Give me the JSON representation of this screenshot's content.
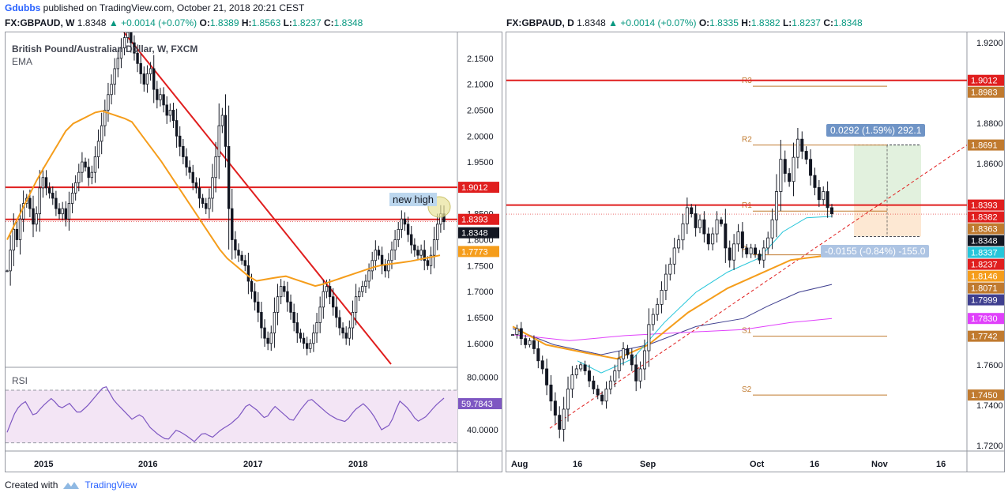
{
  "header": {
    "author": "Gdubbs",
    "text": "published on TradingView.com, October 21, 2018 20:21 CEST"
  },
  "left": {
    "quote": {
      "symbol": "FX:GBPAUD, W",
      "last": "1.8348",
      "change": "+0.0014 (+0.07%)",
      "o_lbl": "O:",
      "o": "1.8389",
      "h_lbl": "H:",
      "h": "1.8563",
      "l_lbl": "L:",
      "l": "1.8237",
      "c_lbl": "C:",
      "c": "1.8348"
    },
    "title": "British Pound/Australian Dollar, W, FXCM",
    "indicator": "EMA",
    "annotation": "new high",
    "rsi_label": "RSI"
  },
  "right": {
    "quote": {
      "symbol": "FX:GBPAUD, D",
      "last": "1.8348",
      "change": "+0.0014 (+0.07%)",
      "o_lbl": "O:",
      "o": "1.8335",
      "h_lbl": "H:",
      "h": "1.8382",
      "l_lbl": "L:",
      "l": "1.8237",
      "c_lbl": "C:",
      "c": "1.8348"
    },
    "measure_up": "0.0292 (1.59%) 292.1",
    "measure_down": "-0.0155 (-0.84%) -155.0"
  },
  "footer": {
    "created": "Created with",
    "brand": "TradingView"
  },
  "colors": {
    "up": "#131722",
    "down": "#131722",
    "resistance": "#e01e1e",
    "ema_orange": "#f59d1b",
    "rsi_purple": "#7e57c2",
    "rsi_fill": "#f3e5f5",
    "cyan": "#26c6da",
    "navy": "#3f3f8f",
    "magenta": "#e040fb",
    "pivot": "#c07a2f"
  },
  "chart_data": [
    {
      "type": "candlestick",
      "title": "British Pound/Australian Dollar, W, FXCM",
      "timeframe": "weekly",
      "x_ticks": [
        "2015",
        "2016",
        "2017",
        "2018"
      ],
      "ylim": [
        1.56,
        2.2
      ],
      "y_ticks": [
        "2.1500",
        "2.1000",
        "2.0500",
        "2.0000",
        "1.9500",
        "1.9000",
        "1.8500",
        "1.8000",
        "1.7500",
        "1.7000",
        "1.6500",
        "1.6000"
      ],
      "price_labels": [
        {
          "value": "1.9012",
          "color": "#e01e1e"
        },
        {
          "value": "1.8393",
          "color": "#e01e1e"
        },
        {
          "value": "1.8348",
          "color": "#131722"
        },
        {
          "value": "1.7773",
          "color": "#f59d1b"
        }
      ],
      "horizontal_lines": [
        1.9012,
        1.8393
      ],
      "trendline": {
        "from": [
          "2015-06",
          2.2
        ],
        "to": [
          "2018-02",
          1.56
        ]
      },
      "close_series": [
        1.74,
        1.78,
        1.82,
        1.8,
        1.84,
        1.87,
        1.88,
        1.86,
        1.83,
        1.85,
        1.9,
        1.92,
        1.9,
        1.89,
        1.88,
        1.86,
        1.85,
        1.86,
        1.84,
        1.87,
        1.89,
        1.91,
        1.93,
        1.95,
        1.94,
        1.92,
        1.93,
        1.96,
        1.99,
        2.02,
        2.05,
        2.08,
        2.1,
        2.13,
        2.15,
        2.17,
        2.19,
        2.2,
        2.18,
        2.16,
        2.14,
        2.12,
        2.1,
        2.12,
        2.13,
        2.09,
        2.07,
        2.08,
        2.06,
        2.04,
        2.05,
        2.03,
        2.0,
        1.98,
        1.96,
        1.94,
        1.93,
        1.91,
        1.9,
        1.88,
        1.87,
        1.86,
        1.88,
        1.92,
        1.96,
        2.02,
        2.04,
        1.98,
        1.86,
        1.8,
        1.78,
        1.77,
        1.76,
        1.75,
        1.72,
        1.7,
        1.68,
        1.66,
        1.63,
        1.61,
        1.6,
        1.62,
        1.66,
        1.69,
        1.71,
        1.7,
        1.68,
        1.66,
        1.64,
        1.62,
        1.61,
        1.6,
        1.59,
        1.6,
        1.62,
        1.64,
        1.67,
        1.7,
        1.71,
        1.69,
        1.67,
        1.65,
        1.63,
        1.62,
        1.61,
        1.63,
        1.66,
        1.69,
        1.7,
        1.71,
        1.72,
        1.74,
        1.76,
        1.78,
        1.77,
        1.75,
        1.74,
        1.76,
        1.78,
        1.8,
        1.82,
        1.84,
        1.83,
        1.81,
        1.79,
        1.78,
        1.77,
        1.78,
        1.76,
        1.75,
        1.77,
        1.8,
        1.83,
        1.85,
        1.8348
      ],
      "ema": [
        1.8,
        1.92,
        2.02,
        2.05,
        2.03,
        1.95,
        1.86,
        1.77,
        1.72,
        1.73,
        1.71,
        1.73,
        1.75,
        1.758,
        1.77
      ],
      "rsi": {
        "label": "RSI",
        "value": "59.7843",
        "ylim": [
          25,
          85
        ],
        "y_ticks": [
          "80.0000",
          "40.0000"
        ],
        "bands": [
          70,
          30
        ],
        "values": [
          38,
          55,
          62,
          50,
          58,
          64,
          56,
          60,
          52,
          58,
          66,
          74,
          62,
          55,
          48,
          52,
          42,
          36,
          32,
          40,
          36,
          31,
          38,
          34,
          40,
          44,
          50,
          60,
          55,
          48,
          58,
          52,
          46,
          56,
          64,
          58,
          52,
          48,
          46,
          55,
          60,
          52,
          40,
          44,
          62,
          56,
          46,
          50,
          58,
          64
        ]
      }
    },
    {
      "type": "candlestick",
      "title": "FX:GBPAUD, D",
      "timeframe": "daily",
      "x_ticks": [
        "Aug",
        "16",
        "Sep",
        "Oct",
        "16",
        "Nov",
        "16"
      ],
      "ylim": [
        1.718,
        1.925
      ],
      "y_ticks": [
        "1.9200",
        "1.8800",
        "1.8600",
        "1.7600",
        "1.7400",
        "1.7200"
      ],
      "horizontal_lines": [
        1.9012,
        1.8393
      ],
      "pivots": [
        {
          "label": "R3",
          "value": 1.8983
        },
        {
          "label": "R2",
          "value": 1.8691
        },
        {
          "label": "R1",
          "value": 1.8363
        },
        {
          "label": "P",
          "value": 1.8146
        },
        {
          "label": "S1",
          "value": 1.7742
        },
        {
          "label": "S2",
          "value": 1.745
        }
      ],
      "price_labels": [
        {
          "value": "1.9012",
          "color": "#e01e1e"
        },
        {
          "value": "1.8983",
          "color": "#c07a2f"
        },
        {
          "value": "1.8691",
          "color": "#c07a2f"
        },
        {
          "value": "1.8393",
          "color": "#e01e1e"
        },
        {
          "value": "1.8382",
          "color": "#e01e1e"
        },
        {
          "value": "1.8363",
          "color": "#c07a2f"
        },
        {
          "value": "1.8348",
          "color": "#131722"
        },
        {
          "value": "1.8337",
          "color": "#26c6da"
        },
        {
          "value": "1.8237",
          "color": "#e01e1e"
        },
        {
          "value": "1.8146",
          "color": "#f59d1b"
        },
        {
          "value": "1.8071",
          "color": "#c07a2f"
        },
        {
          "value": "1.7999",
          "color": "#3f3f8f"
        },
        {
          "value": "1.7830",
          "color": "#e040fb"
        },
        {
          "value": "1.7742",
          "color": "#c07a2f"
        },
        {
          "value": "1.7450",
          "color": "#c07a2f"
        }
      ],
      "close_series": [
        1.775,
        1.778,
        1.773,
        1.77,
        1.772,
        1.768,
        1.762,
        1.758,
        1.75,
        1.742,
        1.735,
        1.728,
        1.738,
        1.748,
        1.755,
        1.758,
        1.76,
        1.757,
        1.752,
        1.748,
        1.745,
        1.742,
        1.748,
        1.752,
        1.757,
        1.763,
        1.768,
        1.765,
        1.76,
        1.752,
        1.758,
        1.767,
        1.78,
        1.785,
        1.79,
        1.797,
        1.805,
        1.81,
        1.818,
        1.822,
        1.83,
        1.838,
        1.835,
        1.828,
        1.832,
        1.825,
        1.82,
        1.825,
        1.832,
        1.83,
        1.818,
        1.812,
        1.82,
        1.826,
        1.818,
        1.815,
        1.818,
        1.815,
        1.812,
        1.818,
        1.823,
        1.832,
        1.846,
        1.862,
        1.855,
        1.851,
        1.863,
        1.872,
        1.866,
        1.862,
        1.854,
        1.848,
        1.842,
        1.846,
        1.838,
        1.835
      ],
      "measure": {
        "up": "0.0292 (1.59%) 292.1",
        "down": "-0.0155 (-0.84%) -155.0",
        "entry": 1.8393,
        "target": 1.8691,
        "stop": 1.8237
      }
    }
  ]
}
